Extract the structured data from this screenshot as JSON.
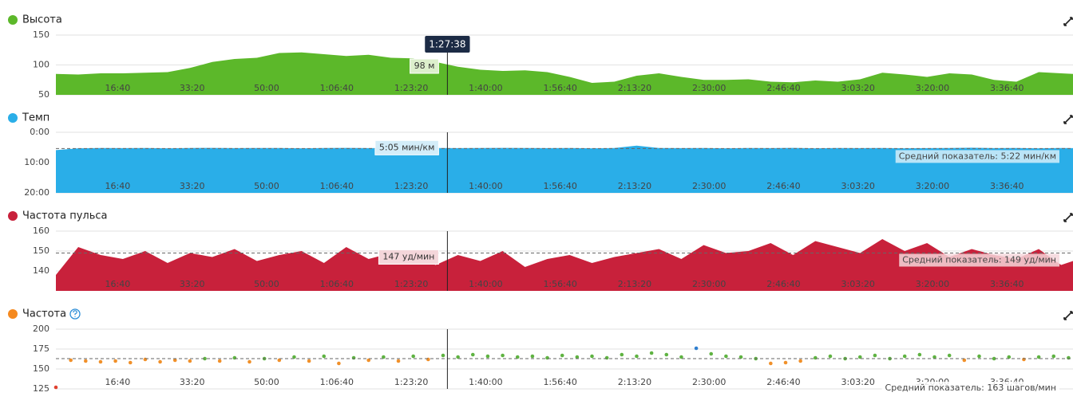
{
  "chart_data": [
    {
      "type": "area",
      "title": "Высота",
      "color": "#5cb82a",
      "x": [
        0,
        300,
        600,
        900,
        1200,
        1500,
        1800,
        2100,
        2400,
        2700,
        3000,
        3300,
        3600,
        3900,
        4200,
        4500,
        4800,
        5100,
        5400,
        5700,
        6000,
        6300,
        6600,
        6900,
        7200,
        7500,
        7800,
        8100,
        8400,
        8700,
        9000,
        9300,
        9600,
        9900,
        10200,
        10500,
        10800,
        11100,
        11400,
        11700,
        12000,
        12300,
        12600,
        12900,
        13200,
        13500,
        13660
      ],
      "values": [
        85,
        84,
        86,
        86,
        87,
        88,
        95,
        105,
        110,
        112,
        120,
        121,
        118,
        115,
        117,
        112,
        111,
        105,
        97,
        92,
        90,
        91,
        88,
        80,
        70,
        72,
        82,
        86,
        80,
        75,
        75,
        76,
        72,
        71,
        74,
        72,
        76,
        87,
        84,
        80,
        86,
        84,
        75,
        72,
        88,
        86,
        85
      ],
      "xlim": [
        0,
        13660
      ],
      "xticks": [
        {
          "value": 1000,
          "label": "16:40"
        },
        {
          "value": 2000,
          "label": "33:20"
        },
        {
          "value": 3000,
          "label": "50:00"
        },
        {
          "value": 4000,
          "label": "1:06:40"
        },
        {
          "value": 5000,
          "label": "1:23:20"
        },
        {
          "value": 6000,
          "label": "1:40:00"
        },
        {
          "value": 7000,
          "label": "1:56:40"
        },
        {
          "value": 8000,
          "label": "2:13:20"
        },
        {
          "value": 9000,
          "label": "2:30:00"
        },
        {
          "value": 10000,
          "label": "2:46:40"
        },
        {
          "value": 11000,
          "label": "3:03:20"
        },
        {
          "value": 12000,
          "label": "3:20:00"
        },
        {
          "value": 13000,
          "label": "3:36:40"
        }
      ],
      "ylim": [
        50,
        150
      ],
      "yticks": [
        50,
        100,
        150
      ],
      "grid": true,
      "cursor": {
        "value": 5258,
        "label": "1:27:38"
      },
      "tooltip": {
        "value": 98,
        "label": "98 м"
      }
    },
    {
      "type": "area",
      "title": "Темп",
      "color": "#2aaee8",
      "x": [
        0,
        300,
        600,
        900,
        1200,
        1500,
        1800,
        2100,
        2400,
        2700,
        3000,
        3300,
        3600,
        3900,
        4200,
        4500,
        4800,
        5100,
        5400,
        5700,
        6000,
        6300,
        6600,
        6900,
        7200,
        7500,
        7800,
        8100,
        8400,
        8700,
        9000,
        9300,
        9600,
        9900,
        10200,
        10500,
        10800,
        11100,
        11400,
        11700,
        12000,
        12300,
        12600,
        12900,
        13200,
        13500,
        13660
      ],
      "values": [
        5.9,
        5.3,
        5.2,
        5.25,
        5.2,
        5.3,
        5.2,
        5.15,
        5.25,
        5.2,
        5.2,
        5.3,
        5.2,
        5.15,
        5.25,
        5.2,
        5.1,
        5.2,
        5.25,
        5.2,
        5.15,
        5.2,
        5.25,
        5.2,
        5.3,
        5.2,
        4.4,
        5.2,
        5.25,
        5.2,
        5.3,
        5.2,
        5.25,
        5.15,
        5.3,
        5.2,
        5.25,
        5.2,
        5.3,
        5.25,
        5.2,
        5.1,
        5.25,
        5.2,
        5.3,
        5.2,
        5.25
      ],
      "xlim": [
        0,
        13660
      ],
      "xticks": [
        {
          "value": 1000,
          "label": "16:40"
        },
        {
          "value": 2000,
          "label": "33:20"
        },
        {
          "value": 3000,
          "label": "50:00"
        },
        {
          "value": 4000,
          "label": "1:06:40"
        },
        {
          "value": 5000,
          "label": "1:23:20"
        },
        {
          "value": 6000,
          "label": "1:40:00"
        },
        {
          "value": 7000,
          "label": "1:56:40"
        },
        {
          "value": 8000,
          "label": "2:13:20"
        },
        {
          "value": 9000,
          "label": "2:30:00"
        },
        {
          "value": 10000,
          "label": "2:46:40"
        },
        {
          "value": 11000,
          "label": "3:03:20"
        },
        {
          "value": 12000,
          "label": "3:20:00"
        },
        {
          "value": 13000,
          "label": "3:36:40"
        }
      ],
      "ylim": [
        20,
        0
      ],
      "yticks": [
        {
          "value": 0,
          "label": "0:00"
        },
        {
          "value": 10,
          "label": "10:00"
        },
        {
          "value": 20,
          "label": "20:00"
        }
      ],
      "grid": true,
      "average": {
        "value": 5.367,
        "label": "Средний показатель: 5:22 мин/км"
      },
      "tooltip": {
        "value": 5.083,
        "label": "5:05 мин/км"
      }
    },
    {
      "type": "area",
      "title": "Частота пульса",
      "color": "#c8213b",
      "x": [
        0,
        300,
        600,
        900,
        1200,
        1500,
        1800,
        2100,
        2400,
        2700,
        3000,
        3300,
        3600,
        3900,
        4200,
        4500,
        4800,
        5100,
        5400,
        5700,
        6000,
        6300,
        6600,
        6900,
        7200,
        7500,
        7800,
        8100,
        8400,
        8700,
        9000,
        9300,
        9600,
        9900,
        10200,
        10500,
        10800,
        11100,
        11400,
        11700,
        12000,
        12300,
        12600,
        12900,
        13200,
        13500,
        13660
      ],
      "values": [
        138,
        152,
        148,
        146,
        150,
        144,
        149,
        147,
        151,
        145,
        148,
        150,
        144,
        152,
        146,
        149,
        147,
        143,
        148,
        145,
        150,
        142,
        146,
        148,
        144,
        147,
        149,
        151,
        146,
        153,
        149,
        150,
        154,
        148,
        155,
        152,
        149,
        156,
        150,
        154,
        147,
        151,
        148,
        146,
        151,
        143,
        145
      ],
      "xlim": [
        0,
        13660
      ],
      "xticks": [
        {
          "value": 1000,
          "label": "16:40"
        },
        {
          "value": 2000,
          "label": "33:20"
        },
        {
          "value": 3000,
          "label": "50:00"
        },
        {
          "value": 4000,
          "label": "1:06:40"
        },
        {
          "value": 5000,
          "label": "1:23:20"
        },
        {
          "value": 6000,
          "label": "1:40:00"
        },
        {
          "value": 7000,
          "label": "1:56:40"
        },
        {
          "value": 8000,
          "label": "2:13:20"
        },
        {
          "value": 9000,
          "label": "2:30:00"
        },
        {
          "value": 10000,
          "label": "2:46:40"
        },
        {
          "value": 11000,
          "label": "3:03:20"
        },
        {
          "value": 12000,
          "label": "3:20:00"
        },
        {
          "value": 13000,
          "label": "3:36:40"
        }
      ],
      "ylim": [
        130,
        160
      ],
      "yticks": [
        140,
        150,
        160
      ],
      "grid": true,
      "average": {
        "value": 149,
        "label": "Средний показатель: 149 уд/мин"
      },
      "tooltip": {
        "value": 147,
        "label": "147 уд/мин"
      }
    },
    {
      "type": "scatter",
      "title": "Частота",
      "color": "#f5891f",
      "zones": [
        {
          "from": 0,
          "color": "#e0412f"
        },
        {
          "from": 140,
          "color": "#f0902a"
        },
        {
          "from": 162.5,
          "color": "#5fb342"
        },
        {
          "from": 174,
          "color": "#2f7fcf"
        }
      ],
      "x": [
        0,
        200,
        400,
        600,
        800,
        1000,
        1200,
        1400,
        1600,
        1800,
        2000,
        2200,
        2400,
        2600,
        2800,
        3000,
        3200,
        3400,
        3600,
        3800,
        4000,
        4200,
        4400,
        4600,
        4800,
        5000,
        5200,
        5400,
        5600,
        5800,
        6000,
        6200,
        6400,
        6600,
        6800,
        7000,
        7200,
        7400,
        7600,
        7800,
        8000,
        8200,
        8400,
        8600,
        8800,
        9000,
        9200,
        9400,
        9600,
        9800,
        10000,
        10200,
        10400,
        10600,
        10800,
        11000,
        11200,
        11400,
        11600,
        11800,
        12000,
        12200,
        12400,
        12600,
        12800,
        13000,
        13200,
        13400,
        13600
      ],
      "values": [
        127,
        161,
        160,
        159,
        160,
        158,
        162,
        159,
        161,
        160,
        163,
        160,
        164,
        159,
        163,
        161,
        165,
        160,
        166,
        157,
        164,
        161,
        165,
        160,
        166,
        162,
        167,
        165,
        168,
        166,
        167,
        165,
        166,
        164,
        167,
        165,
        166,
        164,
        168,
        166,
        170,
        168,
        165,
        176,
        169,
        166,
        165,
        163,
        157,
        158,
        160,
        164,
        166,
        163,
        165,
        167,
        163,
        166,
        168,
        165,
        167,
        161,
        166,
        163,
        165,
        162,
        165,
        166,
        164
      ],
      "xlim": [
        0,
        13660
      ],
      "xticks": [
        {
          "value": 1000,
          "label": "16:40"
        },
        {
          "value": 2000,
          "label": "33:20"
        },
        {
          "value": 3000,
          "label": "50:00"
        },
        {
          "value": 4000,
          "label": "1:06:40"
        },
        {
          "value": 5000,
          "label": "1:23:20"
        },
        {
          "value": 6000,
          "label": "1:40:00"
        },
        {
          "value": 7000,
          "label": "1:56:40"
        },
        {
          "value": 8000,
          "label": "2:13:20"
        },
        {
          "value": 9000,
          "label": "2:30:00"
        },
        {
          "value": 10000,
          "label": "2:46:40"
        },
        {
          "value": 11000,
          "label": "3:03:20"
        },
        {
          "value": 12000,
          "label": "3:20:00"
        },
        {
          "value": 13000,
          "label": "3:36:40"
        }
      ],
      "ylim": [
        125,
        200
      ],
      "yticks": [
        125,
        150,
        175,
        200
      ],
      "grid": true,
      "average": {
        "value": 163,
        "label": "Средний показатель: 163 шагов/мин"
      }
    }
  ]
}
